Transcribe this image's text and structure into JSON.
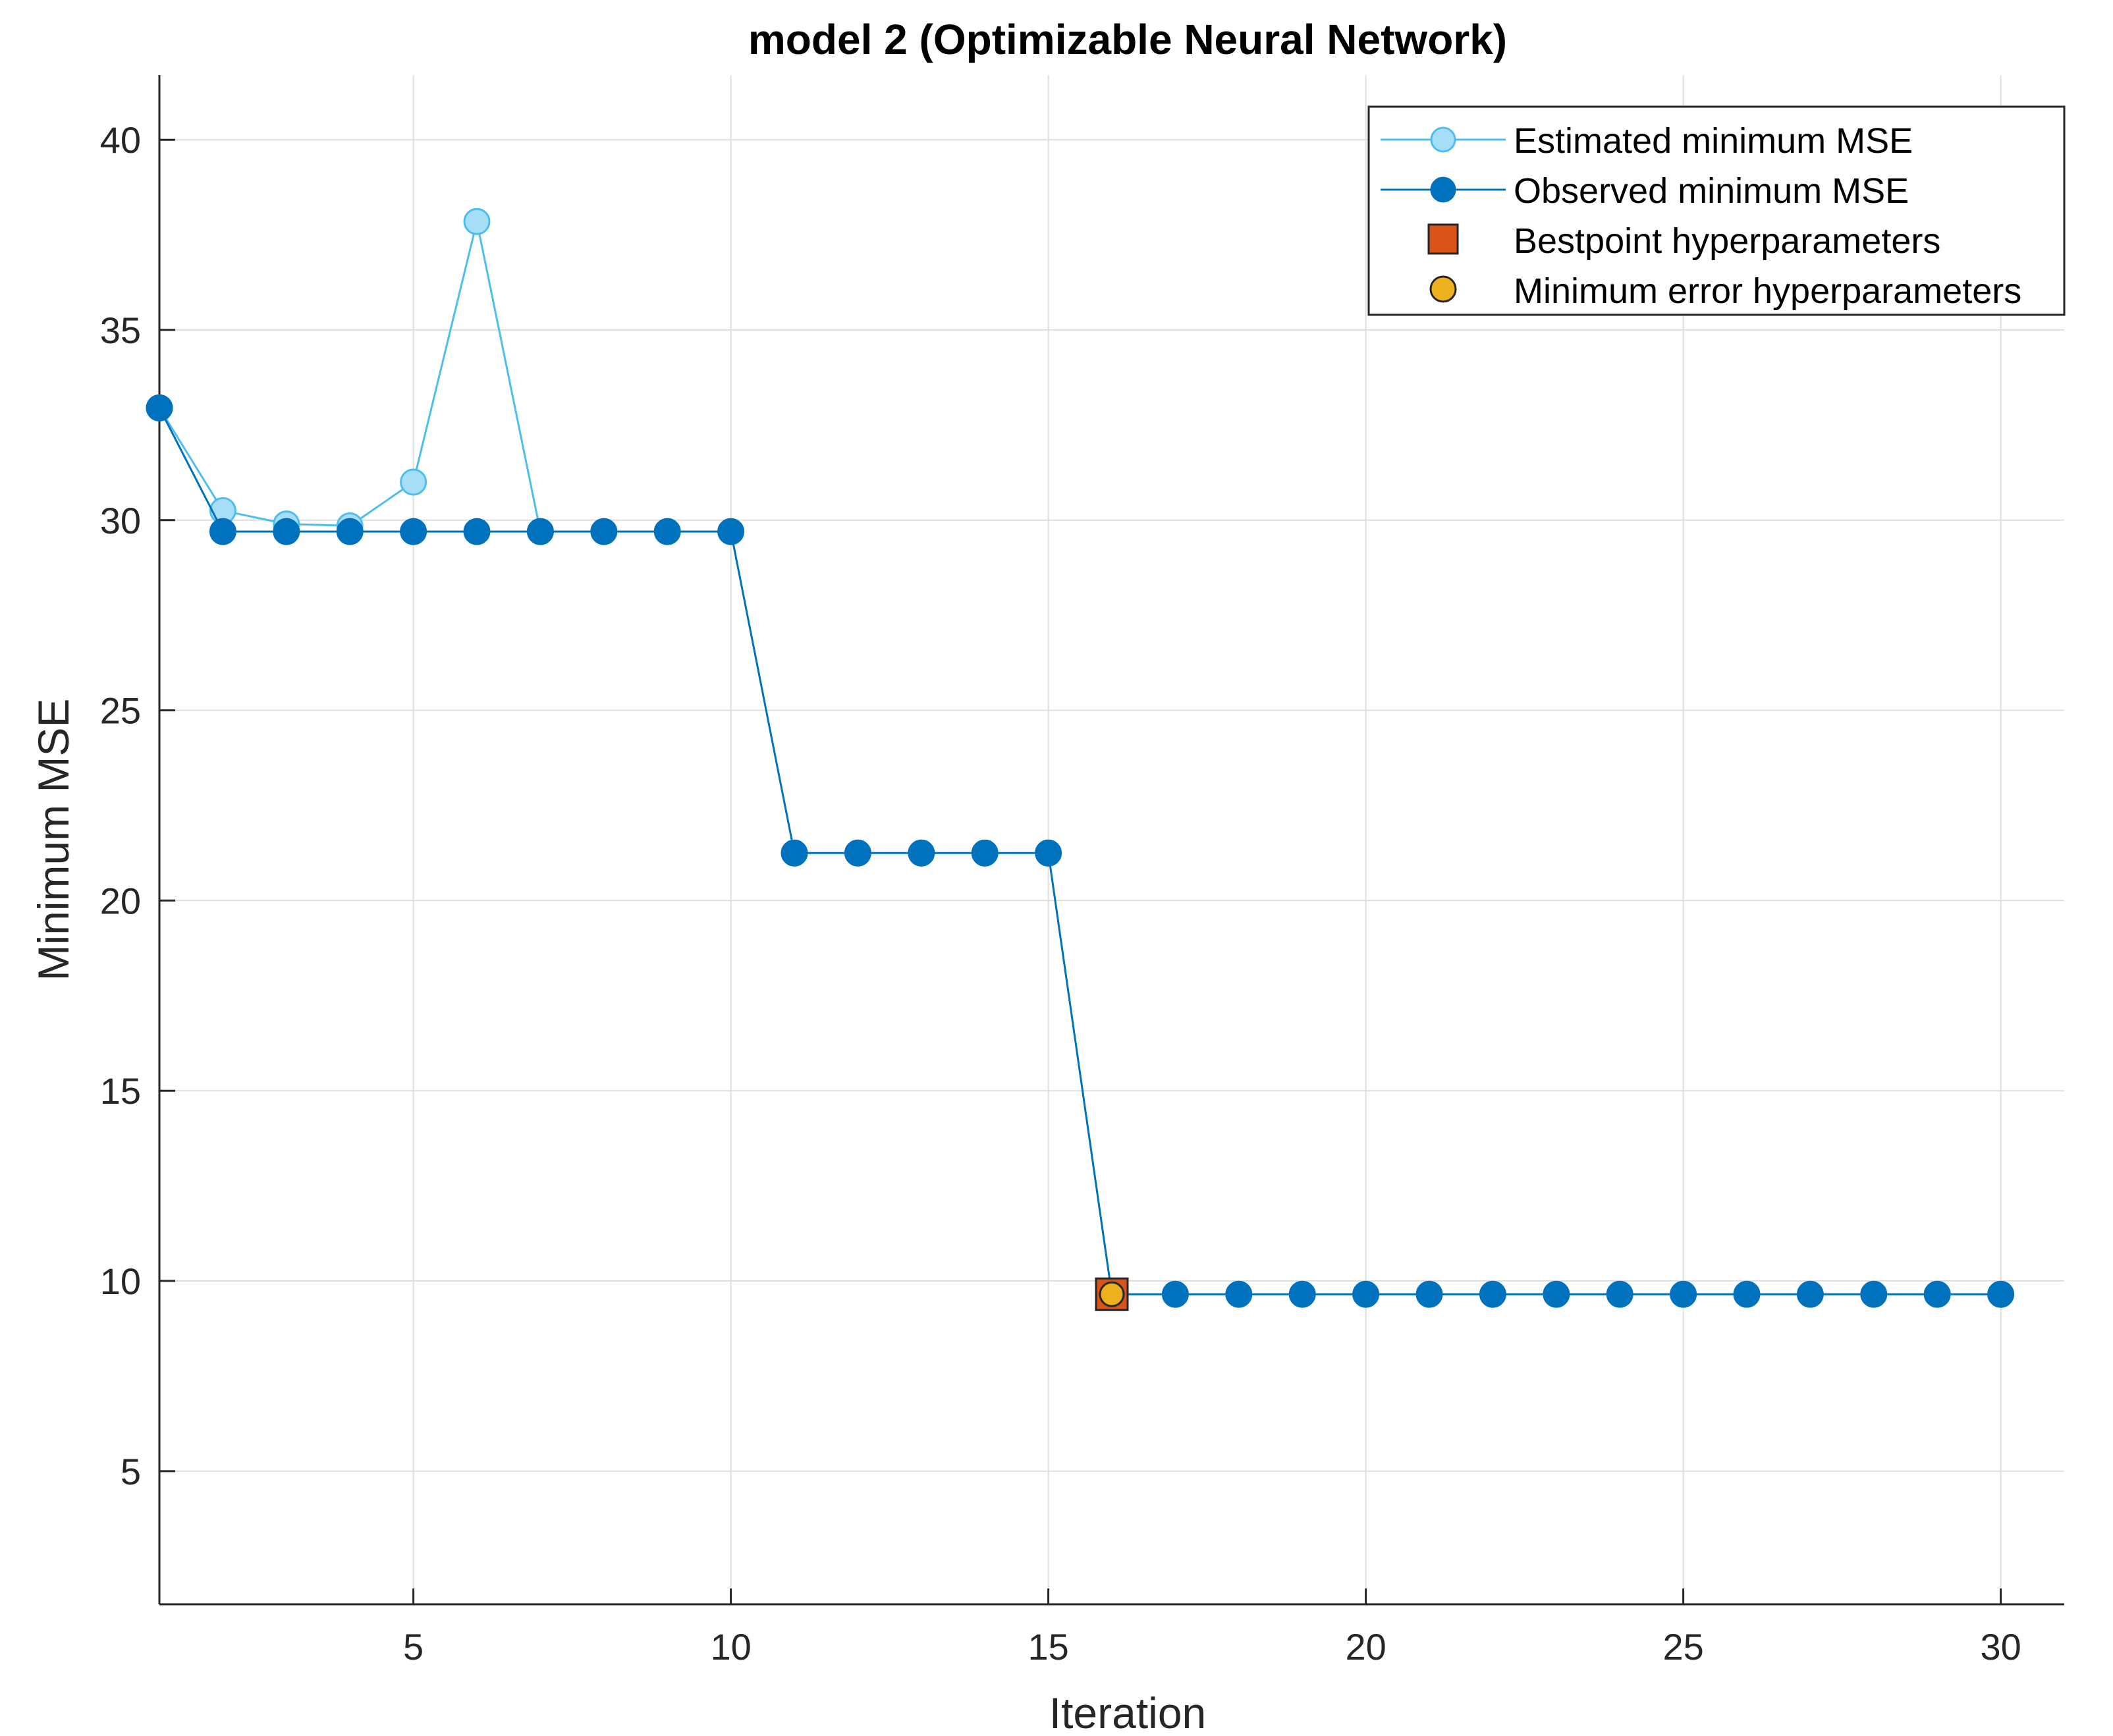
{
  "chart_data": {
    "type": "line",
    "title": "model 2 (Optimizable Neural Network)",
    "xlabel": "Iteration",
    "ylabel": "Minimum MSE",
    "xlim": [
      1,
      31
    ],
    "ylim": [
      1.5,
      41.7
    ],
    "xticks": [
      5,
      10,
      15,
      20,
      25,
      30
    ],
    "yticks": [
      5,
      10,
      15,
      20,
      25,
      30,
      35,
      40
    ],
    "grid": true,
    "legend_position": "top-right",
    "series": [
      {
        "name": "Estimated minimum MSE",
        "color": "#4DBEEE",
        "marker_fill": "#A6DEF8",
        "marker": "circle",
        "x": [
          1,
          2,
          3,
          4,
          5,
          6,
          7
        ],
        "values": [
          32.95,
          30.25,
          29.9,
          29.85,
          31.0,
          37.85,
          29.7
        ]
      },
      {
        "name": "Observed minimum MSE",
        "color": "#0072BD",
        "marker_fill": "#0072BD",
        "marker": "circle",
        "x": [
          1,
          2,
          3,
          4,
          5,
          6,
          7,
          8,
          9,
          10,
          11,
          12,
          13,
          14,
          15,
          16,
          17,
          18,
          19,
          20,
          21,
          22,
          23,
          24,
          25,
          26,
          27,
          28,
          29,
          30
        ],
        "values": [
          32.95,
          29.7,
          29.7,
          29.7,
          29.7,
          29.7,
          29.7,
          29.7,
          29.7,
          29.7,
          21.25,
          21.25,
          21.25,
          21.25,
          21.25,
          9.65,
          9.65,
          9.65,
          9.65,
          9.65,
          9.65,
          9.65,
          9.65,
          9.65,
          9.65,
          9.65,
          9.65,
          9.65,
          9.65,
          9.65
        ]
      }
    ],
    "markers": [
      {
        "name": "Bestpoint hyperparameters",
        "shape": "square",
        "color": "#D95319",
        "x": 16,
        "y": 9.65
      },
      {
        "name": "Minimum error hyperparameters",
        "shape": "circle",
        "color": "#EDB120",
        "x": 16,
        "y": 9.65
      }
    ]
  }
}
